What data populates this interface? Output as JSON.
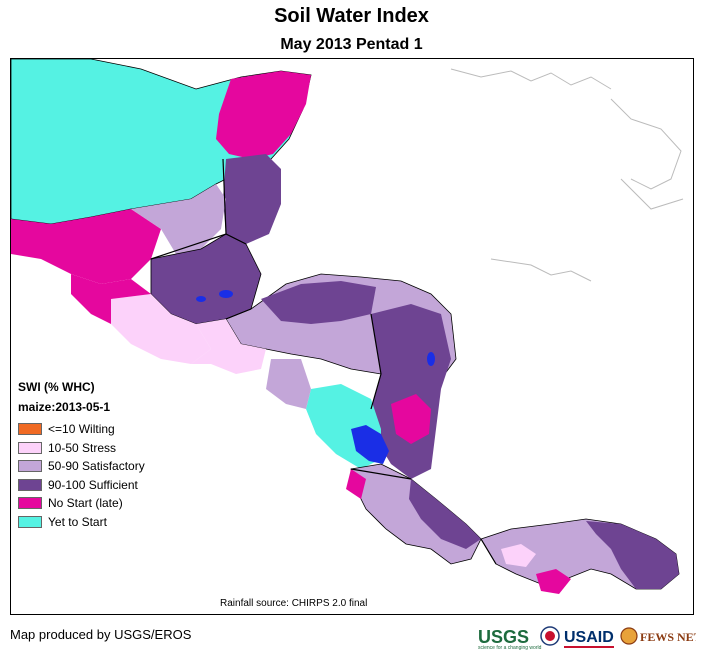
{
  "title": "Soil Water Index",
  "subtitle": "May 2013 Pentad 1",
  "legend": {
    "heading": "SWI (% WHC)",
    "crop": "maize:2013-05-1",
    "items": [
      {
        "label": "<=10 Wilting",
        "color": "#f06a24"
      },
      {
        "label": "10-50 Stress",
        "color": "#fcd2fa"
      },
      {
        "label": "50-90 Satisfactory",
        "color": "#c3a6d8"
      },
      {
        "label": "90-100 Sufficient",
        "color": "#6e4492"
      },
      {
        "label": "No Start (late)",
        "color": "#e5079e"
      },
      {
        "label": "Yet to Start",
        "color": "#55f2e3"
      }
    ]
  },
  "source_note": "Rainfall source: CHIRPS 2.0 final",
  "credit": "Map produced by USGS/EROS",
  "logos": {
    "usgs": "USGS",
    "usgs_tagline": "science for a changing world",
    "usaid": "USAID",
    "fews": "FEWS NET"
  },
  "colors": {
    "water_blue": "#1a2ee6",
    "border": "#000000",
    "admin_line": "#8e8e8e"
  }
}
